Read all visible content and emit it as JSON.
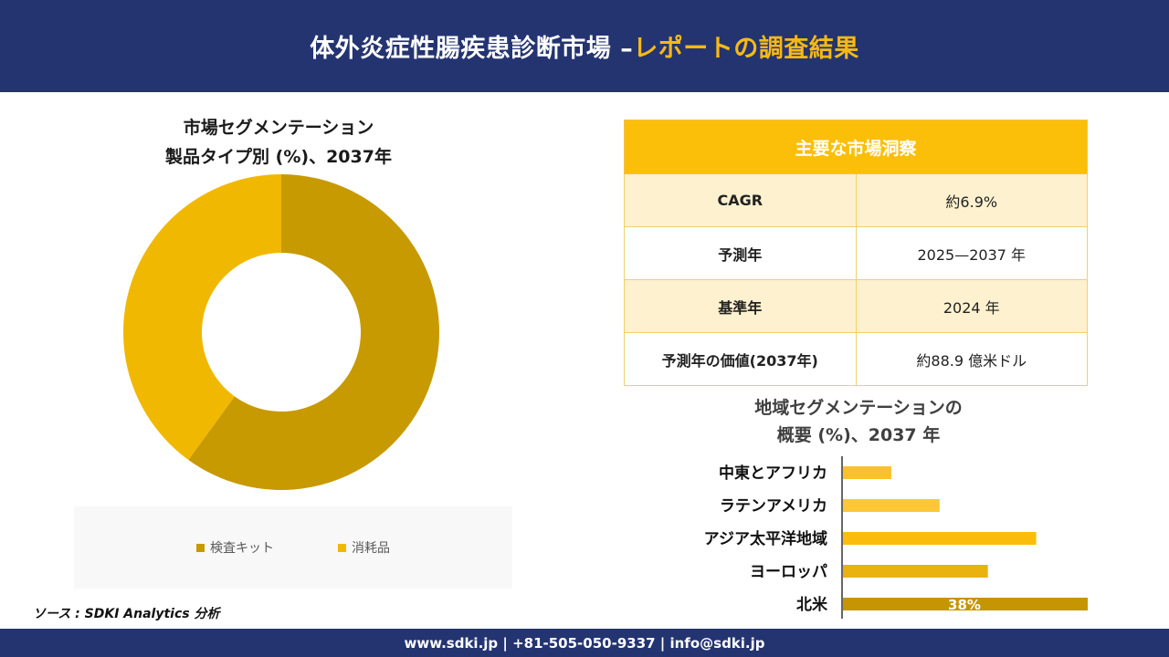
{
  "header": {
    "title_main": "体外炎症性腸疾患診断市場 –",
    "title_accent": "レポートの調査結果"
  },
  "donut": {
    "title_line1": "市場セグメンテーション",
    "title_line2": "製品タイプ別 (%)、2037年"
  },
  "insights": {
    "header": "主要な市場洞察",
    "rows": [
      {
        "label": "CAGR",
        "value": "約6.9%"
      },
      {
        "label": "予測年",
        "value": "2025—2037 年"
      },
      {
        "label": "基準年",
        "value": "2024 年"
      },
      {
        "label": "予測年の価値(2037年)",
        "value": "約88.9 億米ドル"
      }
    ]
  },
  "bars": {
    "title_line1": "地域セグメンテーションの",
    "title_line2": "概要 (%)、2037 年"
  },
  "source": "ソース : SDKI Analytics 分析",
  "footer": "www.sdki.jp | +81-505-050-9337 | info@sdki.jp",
  "chart_data": [
    {
      "type": "pie",
      "title": "市場セグメンテーション 製品タイプ別 (%)、2037年",
      "categories": [
        "検査キット",
        "消耗品"
      ],
      "values": [
        60,
        40
      ],
      "colors": [
        "#c89a02",
        "#f1b800"
      ],
      "legend": "bottom"
    },
    {
      "type": "bar",
      "orientation": "horizontal",
      "title": "地域セグメンテーションの 概要 (%)、2037 年",
      "categories": [
        "中東とアフリカ",
        "ラテンアメリカ",
        "アジア太平洋地域",
        "ヨーロッパ",
        "北米"
      ],
      "values": [
        7.5,
        15,
        30,
        22.5,
        38
      ],
      "colors": [
        "#fbc02d",
        "#fcc736",
        "#fbbd0c",
        "#e9b20f",
        "#c69503"
      ],
      "data_labels": [
        "",
        "",
        "",
        "",
        "38%"
      ]
    }
  ]
}
